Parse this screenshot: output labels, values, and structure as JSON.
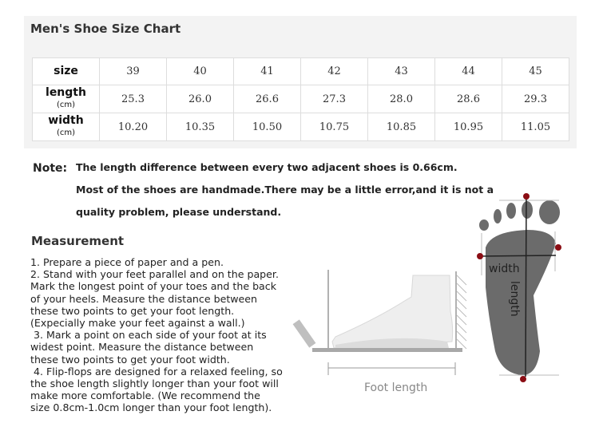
{
  "title": "Men's Shoe Size Chart",
  "table": {
    "rows": [
      {
        "label": "size",
        "unit": "",
        "values": [
          "39",
          "40",
          "41",
          "42",
          "43",
          "44",
          "45"
        ]
      },
      {
        "label": "length",
        "unit": "(cm)",
        "values": [
          "25.3",
          "26.0",
          "26.6",
          "27.3",
          "28.0",
          "28.6",
          "29.3"
        ]
      },
      {
        "label": "width",
        "unit": "(cm)",
        "values": [
          "10.20",
          "10.35",
          "10.50",
          "10.75",
          "10.85",
          "10.95",
          "11.05"
        ]
      }
    ]
  },
  "note": {
    "label": "Note:",
    "lines": [
      "The length difference between every two adjacent shoes is 0.66cm.",
      "Most of the shoes are handmade.There may be a little error,and it is not a",
      "quality problem, please understand."
    ]
  },
  "measurement": {
    "heading": "Measurement",
    "lines": [
      "1. Prepare a piece of paper and a pen.",
      "2. Stand with your feet parallel and on the paper.",
      "Mark the longest point of your toes and the back",
      "of your heels. Measure the distance between",
      "these two points to get your foot length.",
      "(Expecially make your feet against a wall.)",
      " 3. Mark a point on each side of your foot at its",
      "widest point. Measure the distance between",
      "these two points to get your foot width.",
      " 4. Flip-flops are designed for a relaxed feeling, so",
      "the shoe length slightly longer than your foot will",
      "make more comfortable. (We recommend the",
      "size 0.8cm-1.0cm longer than your foot length)."
    ]
  },
  "diagram": {
    "foot_length_label": "Foot length",
    "width_label": "width",
    "length_label": "length",
    "marker_color": "#8b0d14",
    "foot_color": "#6b6b6b"
  }
}
